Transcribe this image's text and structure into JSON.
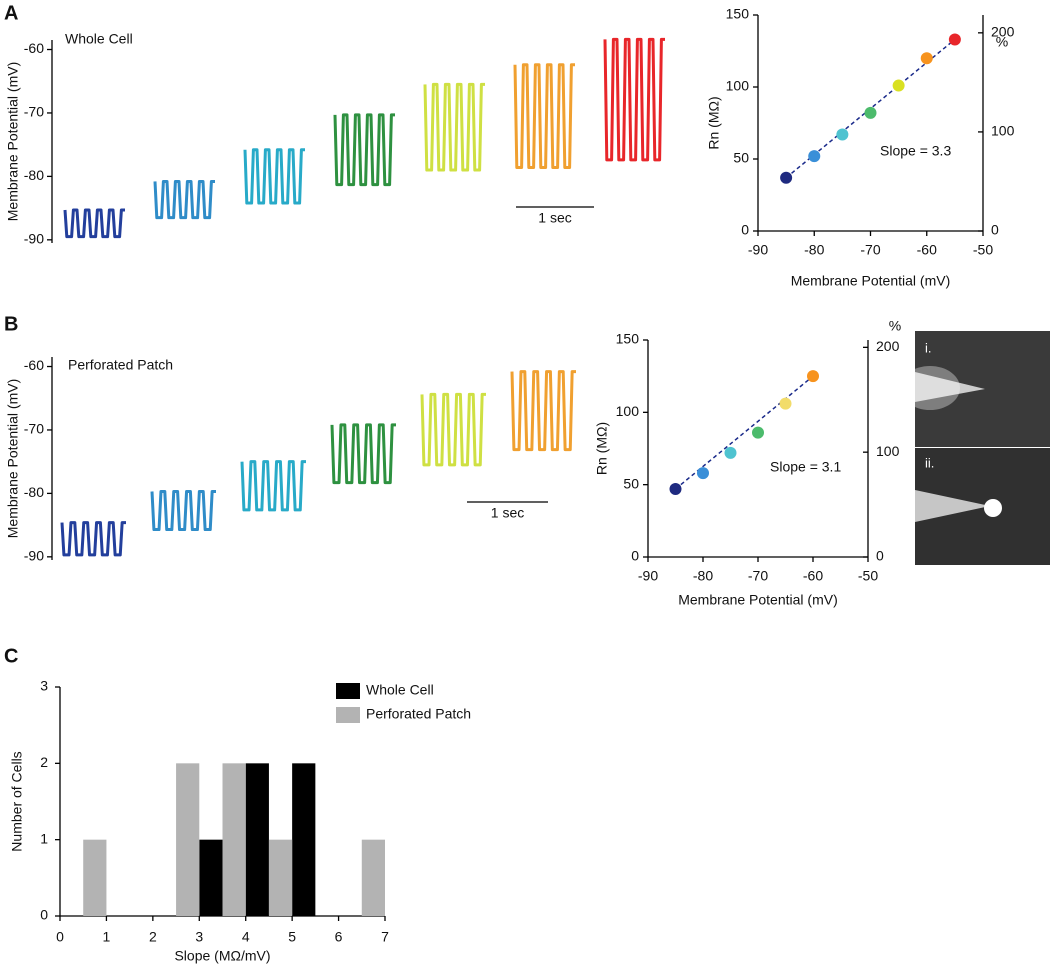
{
  "panel_labels": [
    "A",
    "B",
    "C"
  ],
  "image_panel": {
    "labels": [
      "i.",
      "ii."
    ]
  },
  "chart_data": [
    {
      "type": "traces",
      "ylabel": "Membrane Potential (mV)",
      "annotation": "Whole Cell",
      "scale_bar": "1 sec",
      "ylim": [
        -90.5,
        -58.5
      ],
      "yticks": [
        -60,
        -70,
        -80,
        -90
      ],
      "series": [
        {
          "color": "#233f9c",
          "top": -85.3,
          "bottom": -89.5
        },
        {
          "color": "#2f8cc8",
          "top": -80.8,
          "bottom": -86.5
        },
        {
          "color": "#28aac8",
          "top": -75.8,
          "bottom": -84.2
        },
        {
          "color": "#2e9140",
          "top": -70.3,
          "bottom": -81.3
        },
        {
          "color": "#cfe043",
          "top": -65.5,
          "bottom": -79
        },
        {
          "color": "#f0a030",
          "top": -62.4,
          "bottom": -78.6
        },
        {
          "color": "#e8262a",
          "top": -58.4,
          "bottom": -77.4
        }
      ]
    },
    {
      "type": "scatter",
      "xlabel": "Membrane Potential (mV)",
      "ylabel": "Rn (MΩ)",
      "y2label": "%",
      "annotation": "Slope = 3.3",
      "xlim": [
        -90,
        -50
      ],
      "xticks": [
        -90,
        -80,
        -70,
        -60,
        -50
      ],
      "ylim": [
        0,
        150
      ],
      "yticks": [
        0,
        50,
        100,
        150
      ],
      "y2lim": [
        0,
        218
      ],
      "y2ticks": [
        0,
        100,
        200
      ],
      "fit_color": "#1a2a8a",
      "x": [
        -85,
        -80,
        -75,
        -70,
        -65,
        -60,
        -55
      ],
      "values": [
        37,
        52,
        67,
        82,
        101,
        120,
        133
      ],
      "colors": [
        "#1f2a80",
        "#3a8fd8",
        "#4fc3d0",
        "#4cbb6c",
        "#d9e021",
        "#f7931e",
        "#e8262a"
      ]
    },
    {
      "type": "traces",
      "ylabel": "Membrane Potential (mV)",
      "annotation": "Perforated Patch",
      "scale_bar": "1 sec",
      "ylim": [
        -90.5,
        -58.5
      ],
      "yticks": [
        -60,
        -70,
        -80,
        -90
      ],
      "series": [
        {
          "color": "#233f9c",
          "top": -84.6,
          "bottom": -89.7
        },
        {
          "color": "#2f8cc8",
          "top": -79.7,
          "bottom": -85.7
        },
        {
          "color": "#28aac8",
          "top": -75,
          "bottom": -82.6
        },
        {
          "color": "#2e9140",
          "top": -69.2,
          "bottom": -78.3
        },
        {
          "color": "#cfe043",
          "top": -64.4,
          "bottom": -75.5
        },
        {
          "color": "#f0a030",
          "top": -60.8,
          "bottom": -73.1
        }
      ]
    },
    {
      "type": "scatter",
      "xlabel": "Membrane Potential (mV)",
      "ylabel": "Rn (MΩ)",
      "y2label": "%",
      "annotation": "Slope = 3.1",
      "xlim": [
        -90,
        -50
      ],
      "xticks": [
        -90,
        -80,
        -70,
        -60,
        -50
      ],
      "ylim": [
        0,
        150
      ],
      "yticks": [
        0,
        50,
        100,
        150
      ],
      "y2lim": [
        0,
        207
      ],
      "y2ticks": [
        0,
        100,
        200
      ],
      "fit_color": "#1a2a8a",
      "x": [
        -85,
        -80,
        -75,
        -70,
        -65,
        -60
      ],
      "values": [
        47,
        58,
        72,
        86,
        106,
        125
      ],
      "colors": [
        "#1f2a80",
        "#3a8fd8",
        "#4fc3d0",
        "#4cbb6c",
        "#f2dc6a",
        "#f7931e"
      ]
    },
    {
      "type": "histogram",
      "xlabel": "Slope (MΩ/mV)",
      "ylabel": "Number of Cells",
      "xlim": [
        0,
        7
      ],
      "xticks": [
        0,
        1,
        2,
        3,
        4,
        5,
        6,
        7
      ],
      "ylim": [
        0,
        3
      ],
      "yticks": [
        0,
        1,
        2,
        3
      ],
      "bins": [
        0,
        0.5,
        1,
        1.5,
        2,
        2.5,
        3,
        3.5,
        4,
        4.5,
        5,
        5.5,
        6,
        6.5,
        7
      ],
      "series": [
        {
          "name": "Whole Cell",
          "color": "#000000",
          "values": [
            0,
            0,
            0,
            0,
            0,
            0,
            1,
            0,
            2,
            0,
            2,
            0,
            0,
            0
          ]
        },
        {
          "name": "Perforated Patch",
          "color": "#b3b3b3",
          "values": [
            0,
            1,
            0,
            0,
            0,
            2,
            0,
            2,
            0,
            1,
            0,
            0,
            0,
            1
          ]
        }
      ]
    }
  ]
}
